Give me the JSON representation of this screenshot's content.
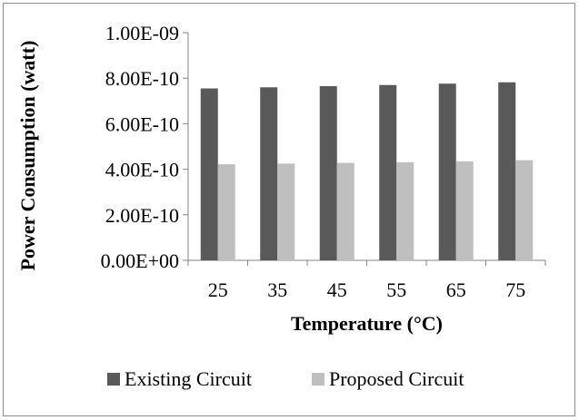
{
  "chart_data": {
    "type": "bar",
    "categories": [
      "25",
      "35",
      "45",
      "55",
      "65",
      "75"
    ],
    "series": [
      {
        "name": "Existing Circuit",
        "color": "#595959",
        "values": [
          7.55e-10,
          7.6e-10,
          7.65e-10,
          7.7e-10,
          7.76e-10,
          7.82e-10
        ]
      },
      {
        "name": "Proposed Circuit",
        "color": "#bfbfbf",
        "values": [
          4.22e-10,
          4.25e-10,
          4.28e-10,
          4.31e-10,
          4.35e-10,
          4.4e-10
        ]
      }
    ],
    "ylim": [
      0,
      1e-09
    ],
    "yticks": [
      0,
      2e-10,
      4e-10,
      6e-10,
      8e-10,
      1e-09
    ],
    "ytick_labels": [
      "0.00E+00",
      "2.00E-10",
      "4.00E-10",
      "6.00E-10",
      "8.00E-10",
      "1.00E-09"
    ],
    "xlabel": "Temperature (°C)",
    "ylabel": "Power Consumption (watt)",
    "grid": false,
    "legend_position": "bottom"
  }
}
